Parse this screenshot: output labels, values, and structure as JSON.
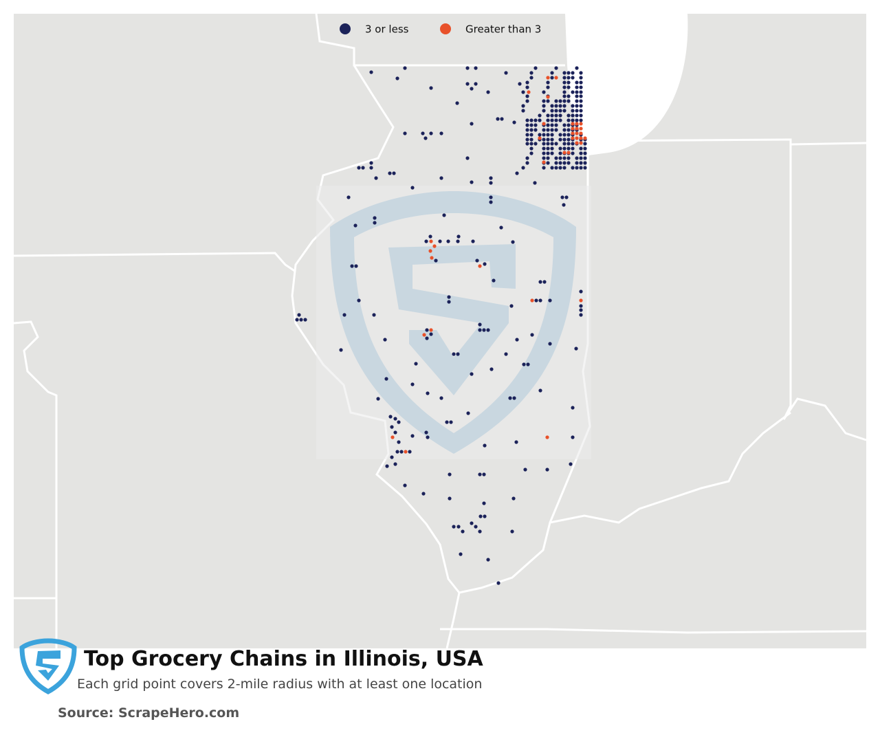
{
  "legend": {
    "items": [
      {
        "label": "3 or less",
        "color": "#1b2259"
      },
      {
        "label": "Greater than 3",
        "color": "#e8512a"
      }
    ]
  },
  "title": "Top Grocery Chains in Illinois, USA",
  "subtitle": "Each grid point covers 2-mile radius with at least one location",
  "source": "Source: ScrapeHero.com"
}
